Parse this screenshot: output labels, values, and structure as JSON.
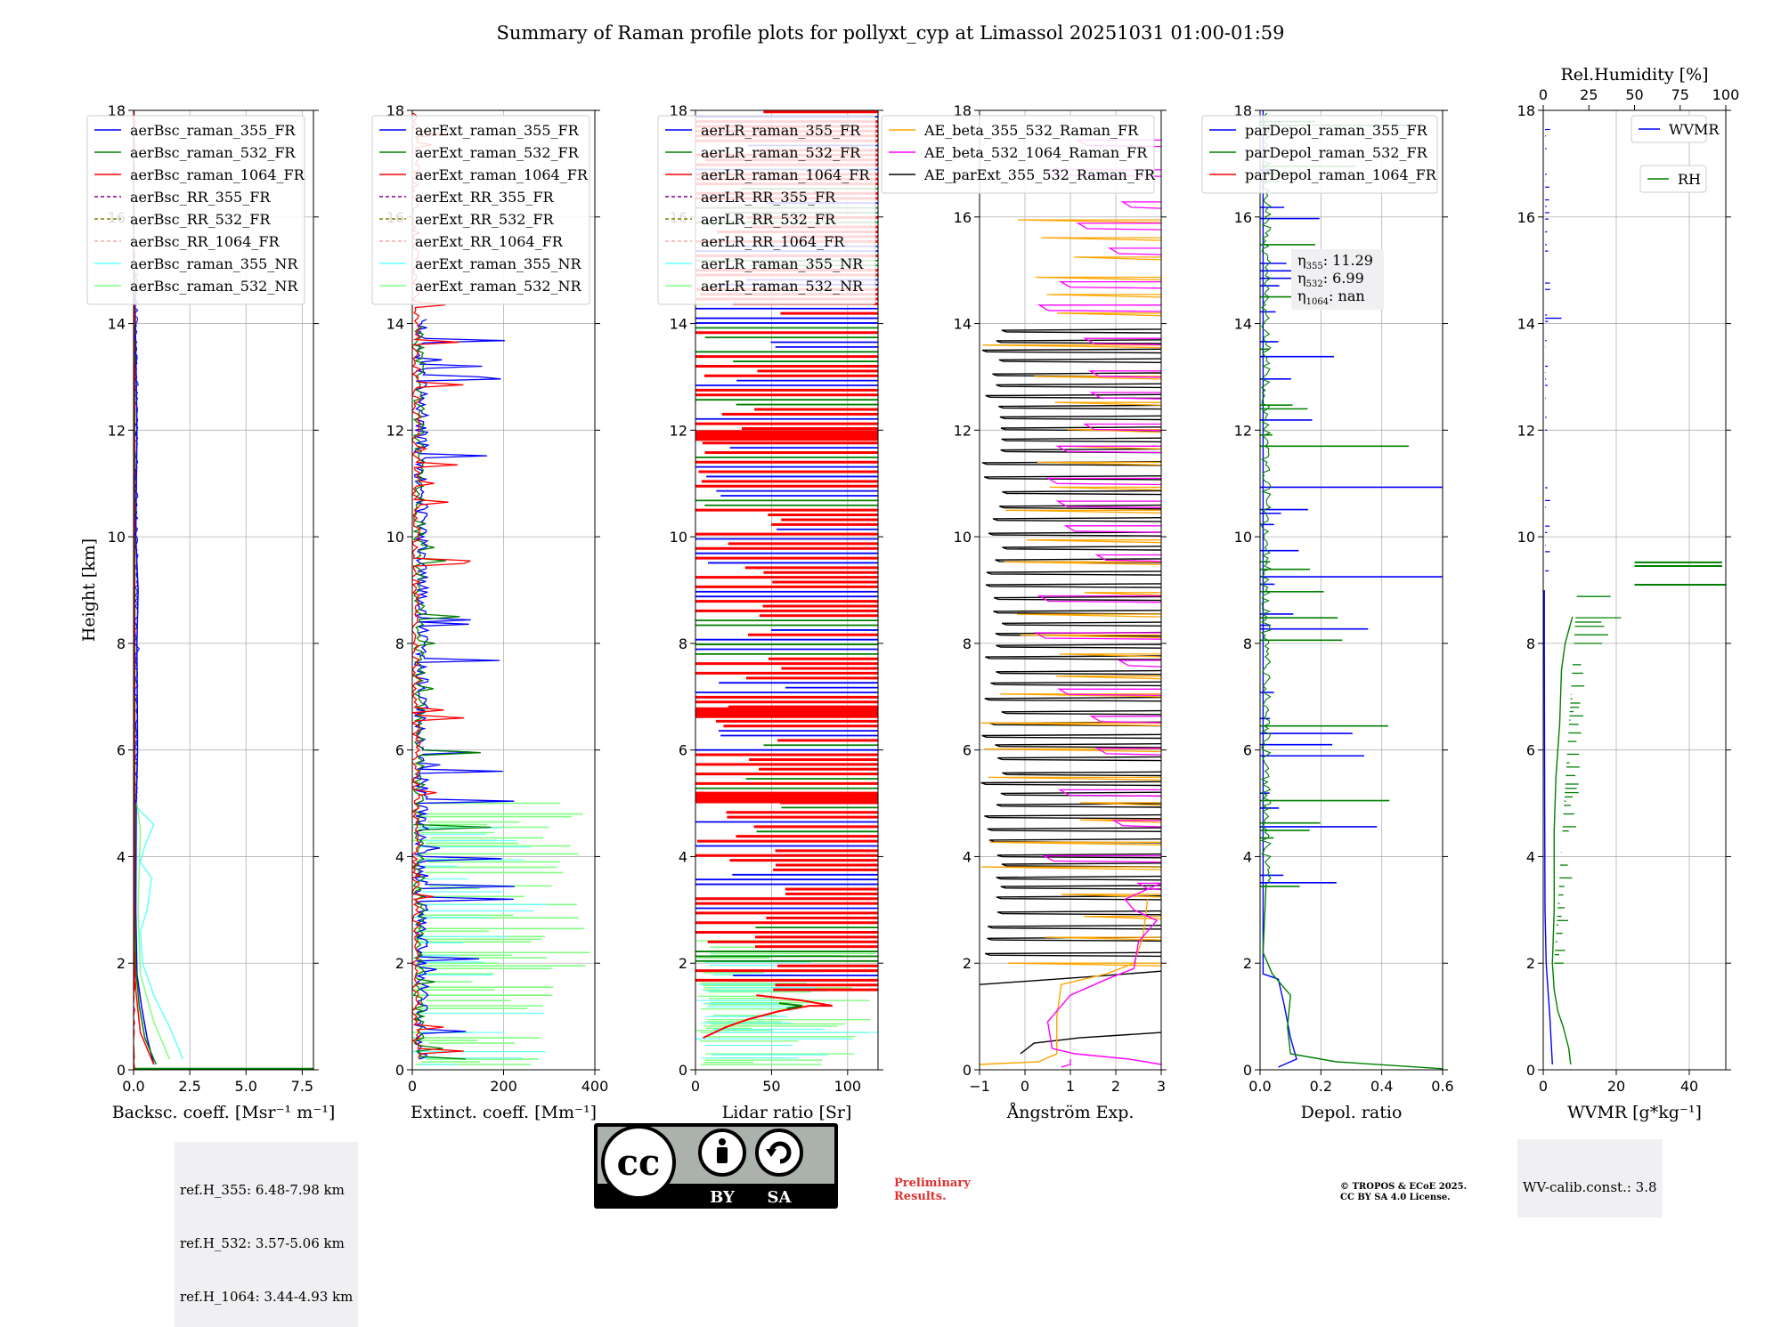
{
  "title": "Summary of Raman profile plots for pollyxt_cyp at Limassol 20251031 01:00-01:59",
  "colors": {
    "blue": "#0000ff",
    "green": "#008000",
    "red": "#ff0000",
    "purple": "#800080",
    "olive": "#808000",
    "salmon": "#f4a6a6",
    "cyan": "#66ffff",
    "lightgreen": "#80ff80",
    "orange": "#ffa500",
    "magenta": "#ff00ff",
    "black": "#000000"
  },
  "ref_box": [
    "ref.H_355: 6.48-7.98 km",
    "ref.H_532: 3.57-5.06 km",
    "ref.H_1064: 3.44-4.93 km"
  ],
  "eta_box": [
    "η355: 11.29",
    "η532: 6.99",
    "η1064: nan"
  ],
  "wv_box": "WV-calib.const.: 3.8",
  "preliminary": [
    "Preliminary",
    "Results."
  ],
  "copyright": [
    "© TROPOS & ECoE 2025.",
    "CC BY SA 4.0 License."
  ],
  "cc_badge": {
    "cc": "cc",
    "by": "BY",
    "sa": "SA"
  },
  "chart_data": [
    {
      "type": "line",
      "id": "backscatter",
      "xlabel": "Backsc. coeff. [Msr⁻¹ m⁻¹]",
      "ylabel": "Height [km]",
      "xlim": [
        0,
        8
      ],
      "ylim": [
        0,
        18
      ],
      "xticks": [
        0,
        2.5,
        5,
        7.5
      ],
      "xtick_labels": [
        "0.0",
        "2.5",
        "5.0",
        "7.5"
      ],
      "yticks": [
        0,
        2,
        4,
        6,
        8,
        10,
        12,
        14,
        16,
        18
      ],
      "grid": true,
      "legend": "top-left",
      "series": [
        {
          "name": "aerBsc_raman_355_FR",
          "color": "blue",
          "style": "solid",
          "points": [
            [
              0.9,
              0.1
            ],
            [
              0.6,
              0.6
            ],
            [
              0.35,
              1.2
            ],
            [
              0.15,
              1.8
            ],
            [
              0.1,
              3
            ],
            [
              0.12,
              5
            ],
            [
              0.18,
              6
            ],
            [
              0.15,
              8
            ],
            [
              0.2,
              9
            ],
            [
              0.1,
              10
            ],
            [
              0.15,
              12
            ],
            [
              0.12,
              13
            ],
            [
              0.08,
              14
            ],
            [
              0.05,
              15
            ]
          ]
        },
        {
          "name": "aerBsc_raman_532_FR",
          "color": "green",
          "style": "solid",
          "points": [
            [
              1.0,
              0.1
            ],
            [
              0.5,
              0.6
            ],
            [
              0.25,
              1.2
            ],
            [
              0.1,
              1.9
            ],
            [
              0.05,
              3
            ],
            [
              0.06,
              6
            ],
            [
              0.05,
              15
            ]
          ]
        },
        {
          "name": "aerBsc_raman_1064_FR",
          "color": "red",
          "style": "solid",
          "points": [
            [
              0.9,
              0.1
            ],
            [
              0.3,
              0.7
            ],
            [
              0.1,
              1.5
            ],
            [
              0.02,
              2.2
            ],
            [
              0.03,
              6
            ],
            [
              0.01,
              15
            ]
          ]
        },
        {
          "name": "aerBsc_RR_355_FR",
          "color": "purple",
          "style": "dashed",
          "points": []
        },
        {
          "name": "aerBsc_RR_532_FR",
          "color": "olive",
          "style": "dashed",
          "points": []
        },
        {
          "name": "aerBsc_RR_1064_FR",
          "color": "salmon",
          "style": "dashed",
          "points": []
        },
        {
          "name": "aerBsc_raman_355_NR",
          "color": "cyan",
          "style": "solid",
          "points": [
            [
              2.2,
              0.2
            ],
            [
              1.6,
              0.8
            ],
            [
              0.9,
              1.4
            ],
            [
              0.4,
              2.0
            ],
            [
              0.3,
              2.6
            ],
            [
              0.6,
              3.0
            ],
            [
              0.8,
              3.6
            ],
            [
              0.3,
              3.9
            ],
            [
              0.5,
              4.2
            ],
            [
              0.9,
              4.6
            ],
            [
              0.2,
              4.9
            ]
          ]
        },
        {
          "name": "aerBsc_raman_532_NR",
          "color": "lightgreen",
          "style": "solid",
          "points": [
            [
              1.6,
              0.2
            ],
            [
              0.9,
              0.9
            ],
            [
              0.3,
              1.8
            ],
            [
              0.2,
              3
            ],
            [
              0.3,
              4.5
            ],
            [
              0.15,
              5
            ]
          ]
        }
      ]
    },
    {
      "type": "line",
      "id": "extinction",
      "xlabel": "Extinct. coeff. [Mm⁻¹]",
      "xlim": [
        0,
        400
      ],
      "ylim": [
        0,
        18
      ],
      "xticks": [
        0,
        200,
        400
      ],
      "xtick_labels": [
        "0",
        "200",
        "400"
      ],
      "yticks": [
        0,
        2,
        4,
        6,
        8,
        10,
        12,
        14,
        16,
        18
      ],
      "grid": true,
      "legend": "top-left",
      "series": [
        {
          "name": "aerExt_raman_355_FR",
          "color": "blue",
          "style": "solid"
        },
        {
          "name": "aerExt_raman_532_FR",
          "color": "green",
          "style": "solid"
        },
        {
          "name": "aerExt_raman_1064_FR",
          "color": "red",
          "style": "solid"
        },
        {
          "name": "aerExt_RR_355_FR",
          "color": "purple",
          "style": "dashed"
        },
        {
          "name": "aerExt_RR_532_FR",
          "color": "olive",
          "style": "dashed"
        },
        {
          "name": "aerExt_RR_1064_FR",
          "color": "salmon",
          "style": "dashed"
        },
        {
          "name": "aerExt_raman_355_NR",
          "color": "cyan",
          "style": "solid"
        },
        {
          "name": "aerExt_raman_532_NR",
          "color": "lightgreen",
          "style": "solid"
        }
      ]
    },
    {
      "type": "line",
      "id": "lidar-ratio",
      "xlabel": "Lidar ratio [Sr]",
      "xlim": [
        0,
        120
      ],
      "ylim": [
        0,
        18
      ],
      "xticks": [
        0,
        50,
        100
      ],
      "xtick_labels": [
        "0",
        "50",
        "100"
      ],
      "yticks": [
        0,
        2,
        4,
        6,
        8,
        10,
        12,
        14,
        16,
        18
      ],
      "grid": true,
      "legend": "top-left",
      "series": [
        {
          "name": "aerLR_raman_355_FR",
          "color": "blue",
          "style": "solid"
        },
        {
          "name": "aerLR_raman_532_FR",
          "color": "green",
          "style": "solid"
        },
        {
          "name": "aerLR_raman_1064_FR",
          "color": "red",
          "style": "solid"
        },
        {
          "name": "aerLR_RR_355_FR",
          "color": "purple",
          "style": "dashed"
        },
        {
          "name": "aerLR_RR_532_FR",
          "color": "olive",
          "style": "dashed"
        },
        {
          "name": "aerLR_RR_1064_FR",
          "color": "salmon",
          "style": "dashed"
        },
        {
          "name": "aerLR_raman_355_NR",
          "color": "cyan",
          "style": "solid"
        },
        {
          "name": "aerLR_raman_532_NR",
          "color": "lightgreen",
          "style": "solid"
        }
      ]
    },
    {
      "type": "line",
      "id": "angstrom",
      "xlabel": "Ångström Exp.",
      "xlim": [
        -1,
        3
      ],
      "ylim": [
        0,
        18
      ],
      "xticks": [
        -1,
        0,
        1,
        2,
        3
      ],
      "xtick_labels": [
        "−1",
        "0",
        "1",
        "2",
        "3"
      ],
      "yticks": [
        0,
        2,
        4,
        6,
        8,
        10,
        12,
        14,
        16,
        18
      ],
      "grid": true,
      "legend": "top-right",
      "series": [
        {
          "name": "AE_beta_355_532_Raman_FR",
          "color": "orange",
          "style": "solid"
        },
        {
          "name": "AE_beta_532_1064_Raman_FR",
          "color": "magenta",
          "style": "solid"
        },
        {
          "name": "AE_parExt_355_532_Raman_FR",
          "color": "black",
          "style": "solid"
        }
      ]
    },
    {
      "type": "line",
      "id": "depol",
      "xlabel": "Depol. ratio",
      "xlim": [
        0,
        0.6
      ],
      "ylim": [
        0,
        18
      ],
      "xticks": [
        0,
        0.2,
        0.4,
        0.6
      ],
      "xtick_labels": [
        "0.0",
        "0.2",
        "0.4",
        "0.6"
      ],
      "yticks": [
        0,
        2,
        4,
        6,
        8,
        10,
        12,
        14,
        16,
        18
      ],
      "grid": true,
      "legend": "top-left",
      "series": [
        {
          "name": "parDepol_raman_355_FR",
          "color": "blue",
          "style": "solid"
        },
        {
          "name": "parDepol_raman_532_FR",
          "color": "green",
          "style": "solid"
        },
        {
          "name": "parDepol_raman_1064_FR",
          "color": "red",
          "style": "solid"
        }
      ]
    },
    {
      "type": "line",
      "id": "wvmr",
      "xlabel": "WVMR [g*kg⁻¹]",
      "xlim": [
        0,
        50
      ],
      "ylim": [
        0,
        18
      ],
      "xticks": [
        0,
        20,
        40
      ],
      "xtick_labels": [
        "0",
        "20",
        "40"
      ],
      "yticks": [
        0,
        2,
        4,
        6,
        8,
        10,
        12,
        14,
        16,
        18
      ],
      "grid": true,
      "top_axis": {
        "label": "Rel.Humidity [%]",
        "ticks": [
          0,
          25,
          50,
          75,
          100
        ],
        "range": [
          0,
          100
        ]
      },
      "series": [
        {
          "name": "WVMR",
          "color": "blue",
          "style": "solid"
        },
        {
          "name": "RH",
          "color": "green",
          "style": "solid"
        }
      ]
    }
  ]
}
